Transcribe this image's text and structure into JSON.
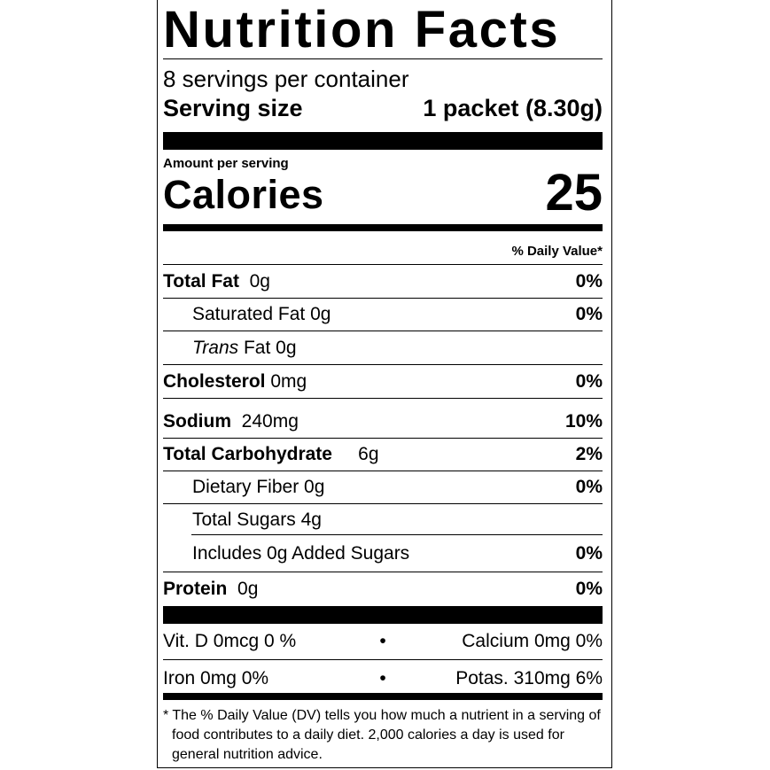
{
  "title": "Nutrition Facts",
  "servings_per_container": "8 servings per container",
  "serving_size": {
    "label": "Serving size",
    "value": "1 packet (8.30g)"
  },
  "amount_per_serving": "Amount per serving",
  "calories": {
    "label": "Calories",
    "value": "25"
  },
  "daily_value_header": "% Daily Value*",
  "nutrients": [
    {
      "name": "Total Fat",
      "amount": "0g",
      "dv": "0%"
    },
    {
      "name": "Saturated Fat 0g",
      "dv": "0%"
    },
    {
      "name_italic": "Trans",
      "name": " Fat 0g"
    },
    {
      "name": "Cholesterol",
      "amount": "0mg",
      "dv": "0%"
    },
    {
      "name": "Sodium",
      "amount": "240mg",
      "dv": "10%"
    },
    {
      "name": "Total Carbohydrate",
      "amount": "6g",
      "dv": "2%"
    },
    {
      "name": "Dietary Fiber 0g",
      "dv": "0%"
    },
    {
      "name": "Total Sugars 4g"
    },
    {
      "name": "Includes 0g Added Sugars",
      "dv": "0%"
    },
    {
      "name": "Protein",
      "amount": "0g",
      "dv": "0%"
    }
  ],
  "micronutrients": [
    {
      "left": "Vit. D 0mcg 0 %",
      "bullet": "•",
      "right": "Calcium 0mg 0%"
    },
    {
      "left": "Iron 0mg 0%",
      "bullet": "•",
      "right": "Potas. 310mg 6%"
    }
  ],
  "footnote": "* The % Daily Value (DV) tells you how much a nutrient in a serving of food contributes to a daily diet. 2,000 calories a day is used for general nutrition advice."
}
